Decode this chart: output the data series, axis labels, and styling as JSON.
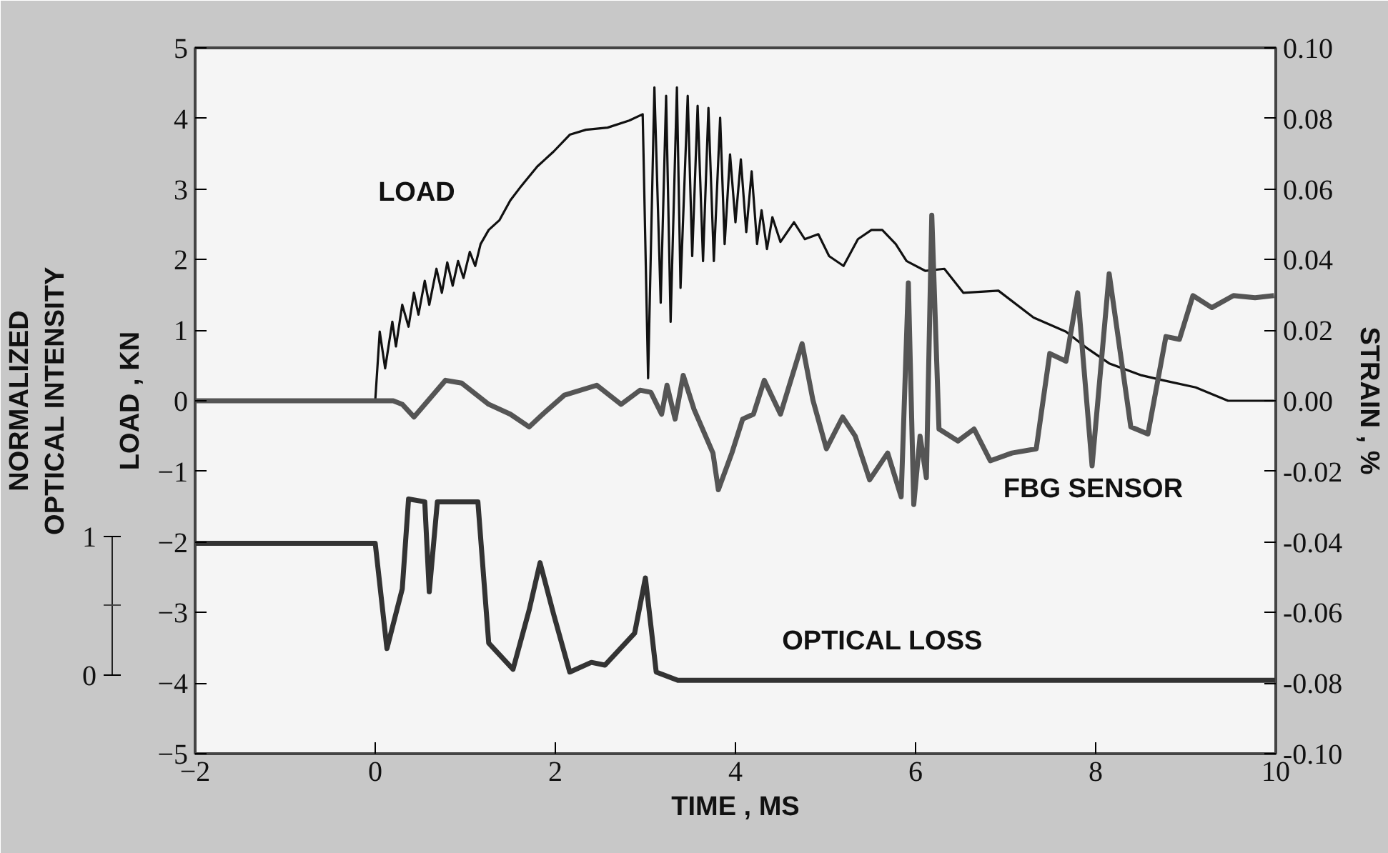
{
  "chart_data": {
    "type": "line",
    "xlabel": "TIME , MS",
    "ylabel": "LOAD , KN",
    "y2label": "STRAIN , %",
    "y3label": "NORMALIZED\nOPTICAL INTENSITY",
    "xlim": [
      -2,
      10
    ],
    "xticks": [
      -2,
      0,
      2,
      4,
      6,
      8,
      10
    ],
    "ylim": [
      -5,
      5
    ],
    "yticks": [
      -5,
      -4,
      -3,
      -2,
      -1,
      0,
      1,
      2,
      3,
      4,
      5
    ],
    "y2lim": [
      -0.1,
      0.1
    ],
    "y2ticks": [
      {
        "value": -0.1,
        "label": "-0.10"
      },
      {
        "value": -0.08,
        "label": "-0.08"
      },
      {
        "value": -0.06,
        "label": "-0.06"
      },
      {
        "value": -0.04,
        "label": "-0.04"
      },
      {
        "value": -0.02,
        "label": "-0.02"
      },
      {
        "value": 0,
        "label": "0.00"
      },
      {
        "value": 0.02,
        "label": "0.02"
      },
      {
        "value": 0.04,
        "label": "0.04"
      },
      {
        "value": 0.06,
        "label": "0.06"
      },
      {
        "value": 0.08,
        "label": "0.08"
      },
      {
        "value": 0.1,
        "label": "0.10"
      }
    ],
    "y3lim": [
      -0.57,
      4.53
    ],
    "y3ticks": [
      0,
      1
    ],
    "grid": false,
    "annotations": [
      "LOAD",
      "FBG SENSOR",
      "OPTICAL LOSS"
    ],
    "series": [
      {
        "color": "#111111",
        "axis": "y",
        "x": [
          0,
          0.05,
          0.11,
          0.19,
          0.23,
          0.3,
          0.37,
          0.43,
          0.48,
          0.55,
          0.6,
          0.68,
          0.74,
          0.8,
          0.86,
          0.92,
          0.98,
          1.05,
          1.11,
          1.17,
          1.26,
          1.38,
          1.5,
          1.62,
          1.8,
          1.98,
          2.16,
          2.34,
          2.58,
          2.82,
          2.97,
          3.03,
          3.1,
          3.17,
          3.23,
          3.28,
          3.35,
          3.39,
          3.47,
          3.52,
          3.58,
          3.64,
          3.7,
          3.76,
          3.83,
          3.88,
          3.94,
          4.0,
          4.06,
          4.12,
          4.18,
          4.24,
          4.29,
          4.35,
          4.41,
          4.5,
          4.65,
          4.77,
          4.92,
          5.04,
          5.2,
          5.36,
          5.51,
          5.63,
          5.78,
          5.9,
          6.11,
          6.32,
          6.53,
          6.92,
          7.31,
          7.67,
          7.91,
          8.15,
          8.51,
          8.75,
          9.11,
          9.47,
          9.98
        ],
        "values": [
          0,
          0.98,
          0.46,
          1.12,
          0.77,
          1.36,
          1.05,
          1.53,
          1.22,
          1.7,
          1.36,
          1.87,
          1.53,
          1.96,
          1.63,
          1.98,
          1.74,
          2.11,
          1.91,
          2.22,
          2.42,
          2.56,
          2.84,
          3.04,
          3.32,
          3.53,
          3.77,
          3.84,
          3.87,
          3.97,
          4.06,
          0.32,
          4.44,
          1.39,
          4.32,
          1.12,
          4.44,
          1.6,
          4.32,
          2.05,
          4.18,
          1.98,
          4.15,
          1.98,
          4.01,
          2.22,
          3.49,
          2.53,
          3.42,
          2.39,
          3.25,
          2.22,
          2.7,
          2.15,
          2.6,
          2.25,
          2.53,
          2.29,
          2.36,
          2.05,
          1.91,
          2.29,
          2.42,
          2.42,
          2.22,
          1.98,
          1.84,
          1.87,
          1.53,
          1.56,
          1.18,
          0.98,
          0.74,
          0.53,
          0.36,
          0.29,
          0.19,
          0.0,
          0.0
        ]
      },
      {
        "color": "#555555",
        "axis": "y2",
        "x": [
          -2,
          0.2,
          0.3,
          0.43,
          0.78,
          0.96,
          1.26,
          1.5,
          1.71,
          1.86,
          2.1,
          2.46,
          2.73,
          2.94,
          3.06,
          3.18,
          3.24,
          3.33,
          3.42,
          3.54,
          3.75,
          3.81,
          3.96,
          4.08,
          4.2,
          4.32,
          4.5,
          4.74,
          4.86,
          5.01,
          5.19,
          5.33,
          5.49,
          5.69,
          5.84,
          5.92,
          5.98,
          6.05,
          6.12,
          6.18,
          6.26,
          6.47,
          6.65,
          6.83,
          7.07,
          7.34,
          7.49,
          7.67,
          7.8,
          7.96,
          8.15,
          8.39,
          8.58,
          8.78,
          8.93,
          9.08,
          9.29,
          9.53,
          9.77,
          9.98
        ],
        "values": [
          0,
          0,
          -0.001,
          -0.0046,
          0.0058,
          0.005,
          -0.001,
          -0.0038,
          -0.0074,
          -0.0038,
          0.0016,
          0.0044,
          -0.001,
          0.003,
          0.0024,
          -0.0038,
          0.0044,
          -0.0052,
          0.0072,
          -0.0024,
          -0.0148,
          -0.0252,
          -0.0148,
          -0.0052,
          -0.0038,
          0.0058,
          -0.0038,
          0.0162,
          0.0002,
          -0.0136,
          -0.0046,
          -0.01,
          -0.0224,
          -0.0148,
          -0.0272,
          0.0334,
          -0.0294,
          -0.01,
          -0.0218,
          0.0526,
          -0.008,
          -0.0114,
          -0.008,
          -0.017,
          -0.0148,
          -0.0136,
          0.0134,
          0.0112,
          0.0306,
          -0.0184,
          0.036,
          -0.0074,
          -0.0094,
          0.0182,
          0.0174,
          0.0298,
          0.0264,
          0.0298,
          0.0292,
          0.0298
        ]
      },
      {
        "color": "#333333",
        "axis": "y3",
        "x": [
          -2,
          0.0,
          0.13,
          0.3,
          0.37,
          0.55,
          0.6,
          0.69,
          1.14,
          1.26,
          1.53,
          1.71,
          1.83,
          1.98,
          2.16,
          2.4,
          2.55,
          2.88,
          3.0,
          3.12,
          3.36,
          10
        ],
        "values": [
          0.95,
          0.95,
          0.19,
          0.62,
          1.27,
          1.25,
          0.6,
          1.25,
          1.25,
          0.23,
          0.04,
          0.47,
          0.81,
          0.44,
          0.02,
          0.09,
          0.07,
          0.3,
          0.7,
          0.02,
          -0.04,
          -0.04
        ]
      }
    ]
  }
}
